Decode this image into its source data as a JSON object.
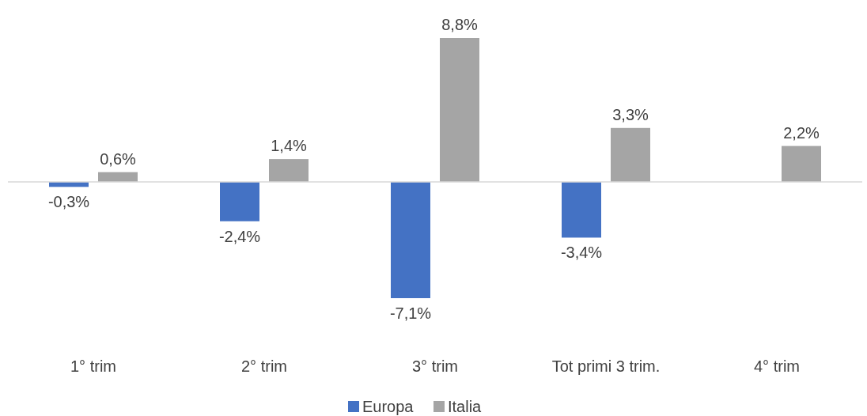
{
  "chart_data": {
    "type": "bar",
    "categories": [
      "1° trim",
      "2° trim",
      "3° trim",
      "Tot primi 3 trim.",
      "4° trim"
    ],
    "series": [
      {
        "name": "Europa",
        "color": "#4472c4",
        "values": [
          -0.3,
          -2.4,
          -7.1,
          -3.4,
          null
        ],
        "value_labels": [
          "-0,3%",
          "-2,4%",
          "-7,1%",
          "-3,4%",
          null
        ]
      },
      {
        "name": "Italia",
        "color": "#a5a5a5",
        "values": [
          0.6,
          1.4,
          8.8,
          3.3,
          2.2
        ],
        "value_labels": [
          "0,6%",
          "1,4%",
          "8,8%",
          "3,3%",
          "2,2%"
        ]
      }
    ],
    "legend": "bottom"
  }
}
